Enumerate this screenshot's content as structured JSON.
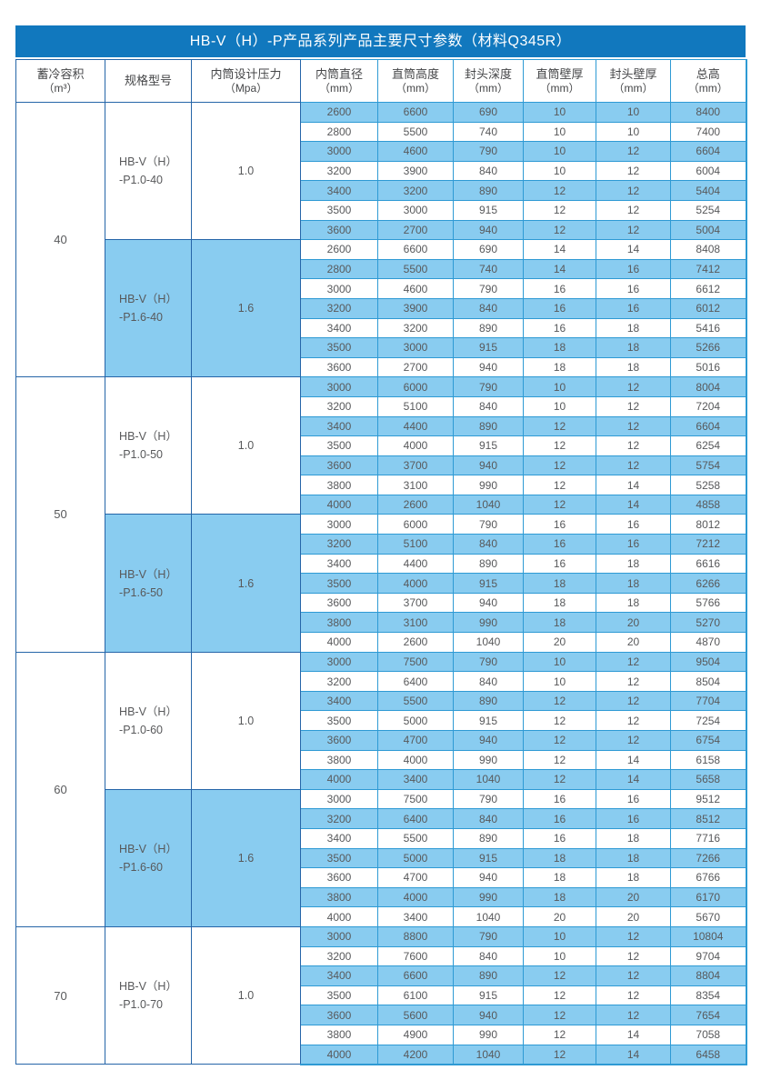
{
  "title": "HB-V（H）-P产品系列产品主要尺寸参数（材料Q345R）",
  "colors": {
    "title_bar": "#1178BE",
    "row_highlight": "#89CCF0",
    "border_data": "#2E9AD4",
    "border_left": "#2565A8",
    "text_data": "#58595B",
    "text_header": "#454648",
    "title_text": "#FFFFFF",
    "page_bg": "#FFFFFF"
  },
  "table": {
    "columns": [
      {
        "label": "蓄冷容积",
        "unit": "（m³）"
      },
      {
        "label": "规格型号",
        "unit": ""
      },
      {
        "label": "内筒设计压力",
        "unit": "（Mpa）"
      },
      {
        "label": "内筒直径",
        "unit": "（mm）"
      },
      {
        "label": "直筒高度",
        "unit": "（mm）"
      },
      {
        "label": "封头深度",
        "unit": "（mm）"
      },
      {
        "label": "直筒壁厚",
        "unit": "（mm）"
      },
      {
        "label": "封头壁厚",
        "unit": "（mm）"
      },
      {
        "label": "总高",
        "unit": "（mm）"
      }
    ],
    "groups": [
      {
        "volume": "40",
        "subgroups": [
          {
            "model": [
              "HB-V（H）",
              "-P1.0-40"
            ],
            "pressure": "1.0",
            "shaded": false,
            "rows": [
              [
                2600,
                6600,
                690,
                10,
                10,
                8400
              ],
              [
                2800,
                5500,
                740,
                10,
                10,
                7400
              ],
              [
                3000,
                4600,
                790,
                10,
                12,
                6604
              ],
              [
                3200,
                3900,
                840,
                10,
                12,
                6004
              ],
              [
                3400,
                3200,
                890,
                12,
                12,
                5404
              ],
              [
                3500,
                3000,
                915,
                12,
                12,
                5254
              ],
              [
                3600,
                2700,
                940,
                12,
                12,
                5004
              ]
            ]
          },
          {
            "model": [
              "HB-V（H）",
              "-P1.6-40"
            ],
            "pressure": "1.6",
            "shaded": true,
            "rows": [
              [
                2600,
                6600,
                690,
                14,
                14,
                8408
              ],
              [
                2800,
                5500,
                740,
                14,
                16,
                7412
              ],
              [
                3000,
                4600,
                790,
                16,
                16,
                6612
              ],
              [
                3200,
                3900,
                840,
                16,
                16,
                6012
              ],
              [
                3400,
                3200,
                890,
                16,
                18,
                5416
              ],
              [
                3500,
                3000,
                915,
                18,
                18,
                5266
              ],
              [
                3600,
                2700,
                940,
                18,
                18,
                5016
              ]
            ]
          }
        ]
      },
      {
        "volume": "50",
        "subgroups": [
          {
            "model": [
              "HB-V（H）",
              "-P1.0-50"
            ],
            "pressure": "1.0",
            "shaded": false,
            "rows": [
              [
                3000,
                6000,
                790,
                10,
                12,
                8004
              ],
              [
                3200,
                5100,
                840,
                10,
                12,
                7204
              ],
              [
                3400,
                4400,
                890,
                12,
                12,
                6604
              ],
              [
                3500,
                4000,
                915,
                12,
                12,
                6254
              ],
              [
                3600,
                3700,
                940,
                12,
                12,
                5754
              ],
              [
                3800,
                3100,
                990,
                12,
                14,
                5258
              ],
              [
                4000,
                2600,
                1040,
                12,
                14,
                4858
              ]
            ]
          },
          {
            "model": [
              "HB-V（H）",
              "-P1.6-50"
            ],
            "pressure": "1.6",
            "shaded": true,
            "rows": [
              [
                3000,
                6000,
                790,
                16,
                16,
                8012
              ],
              [
                3200,
                5100,
                840,
                16,
                16,
                7212
              ],
              [
                3400,
                4400,
                890,
                16,
                18,
                6616
              ],
              [
                3500,
                4000,
                915,
                18,
                18,
                6266
              ],
              [
                3600,
                3700,
                940,
                18,
                18,
                5766
              ],
              [
                3800,
                3100,
                990,
                18,
                20,
                5270
              ],
              [
                4000,
                2600,
                1040,
                20,
                20,
                4870
              ]
            ]
          }
        ]
      },
      {
        "volume": "60",
        "subgroups": [
          {
            "model": [
              "HB-V（H）",
              "-P1.0-60"
            ],
            "pressure": "1.0",
            "shaded": false,
            "rows": [
              [
                3000,
                7500,
                790,
                10,
                12,
                9504
              ],
              [
                3200,
                6400,
                840,
                10,
                12,
                8504
              ],
              [
                3400,
                5500,
                890,
                12,
                12,
                7704
              ],
              [
                3500,
                5000,
                915,
                12,
                12,
                7254
              ],
              [
                3600,
                4700,
                940,
                12,
                12,
                6754
              ],
              [
                3800,
                4000,
                990,
                12,
                14,
                6158
              ],
              [
                4000,
                3400,
                1040,
                12,
                14,
                5658
              ]
            ]
          },
          {
            "model": [
              "HB-V（H）",
              "-P1.6-60"
            ],
            "pressure": "1.6",
            "shaded": true,
            "rows": [
              [
                3000,
                7500,
                790,
                16,
                16,
                9512
              ],
              [
                3200,
                6400,
                840,
                16,
                16,
                8512
              ],
              [
                3400,
                5500,
                890,
                16,
                18,
                7716
              ],
              [
                3500,
                5000,
                915,
                18,
                18,
                7266
              ],
              [
                3600,
                4700,
                940,
                18,
                18,
                6766
              ],
              [
                3800,
                4000,
                990,
                18,
                20,
                6170
              ],
              [
                4000,
                3400,
                1040,
                20,
                20,
                5670
              ]
            ]
          }
        ]
      },
      {
        "volume": "70",
        "subgroups": [
          {
            "model": [
              "HB-V（H）",
              "-P1.0-70"
            ],
            "pressure": "1.0",
            "shaded": false,
            "rows": [
              [
                3000,
                8800,
                790,
                10,
                12,
                10804
              ],
              [
                3200,
                7600,
                840,
                10,
                12,
                9704
              ],
              [
                3400,
                6600,
                890,
                12,
                12,
                8804
              ],
              [
                3500,
                6100,
                915,
                12,
                12,
                8354
              ],
              [
                3600,
                5600,
                940,
                12,
                12,
                7654
              ],
              [
                3800,
                4900,
                990,
                12,
                14,
                7058
              ],
              [
                4000,
                4200,
                1040,
                12,
                14,
                6458
              ]
            ]
          }
        ]
      }
    ]
  }
}
